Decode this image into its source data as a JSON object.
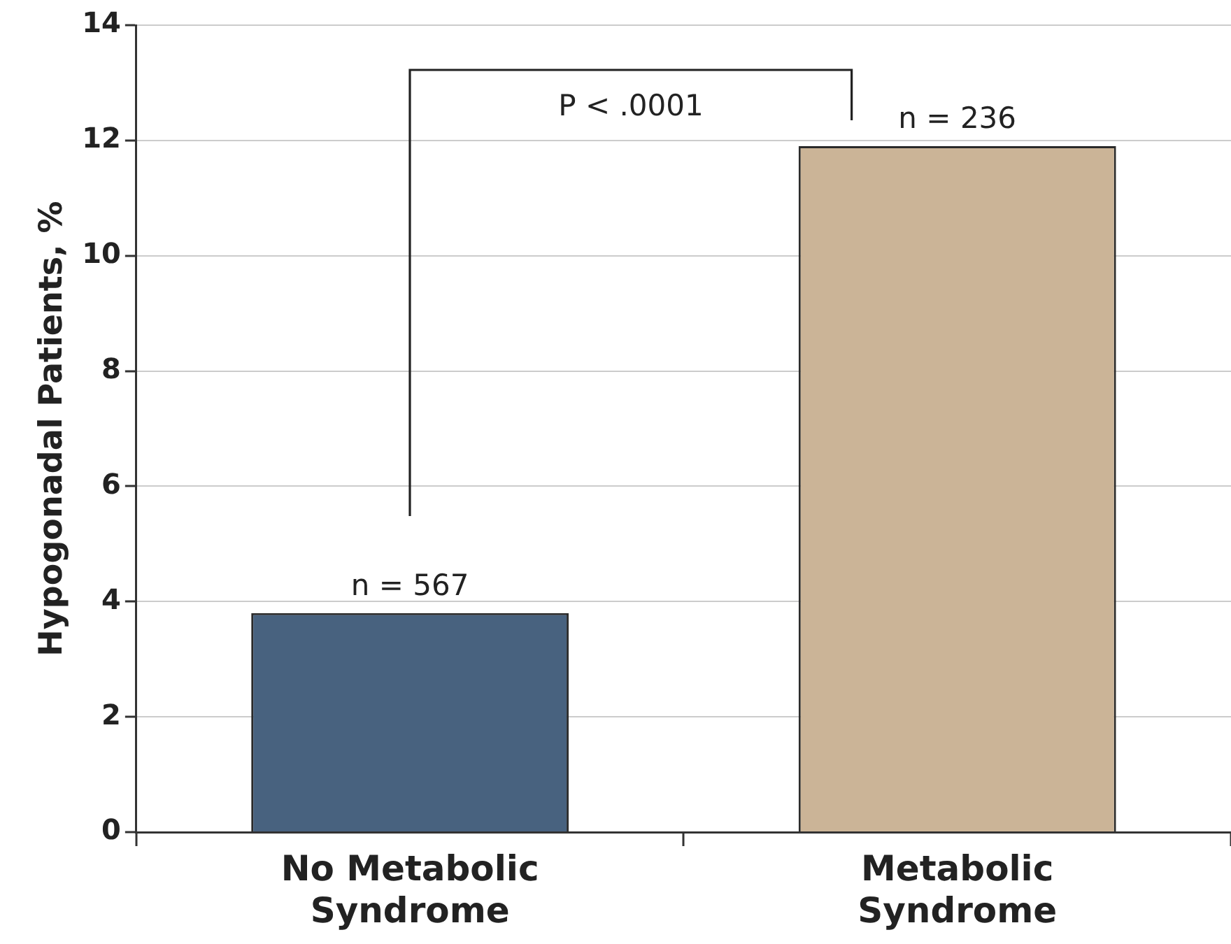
{
  "chart_data": {
    "type": "bar",
    "ylabel": "Hypogonadal Patients, %",
    "categories": [
      "No Metabolic Syndrome",
      "Metabolic Syndrome"
    ],
    "values": [
      3.8,
      11.9
    ],
    "colors": [
      "#48627f",
      "#cbb497"
    ],
    "ylim": [
      0,
      14
    ],
    "yticks": [
      0,
      2,
      4,
      6,
      8,
      10,
      12,
      14
    ],
    "grid": "y",
    "annotations": [
      {
        "text": "n = 567",
        "x": "No Metabolic Syndrome",
        "y": 3.8
      },
      {
        "text": "n = 236",
        "x": "Metabolic Syndrome",
        "y": 11.9
      },
      "P < .0001"
    ]
  }
}
